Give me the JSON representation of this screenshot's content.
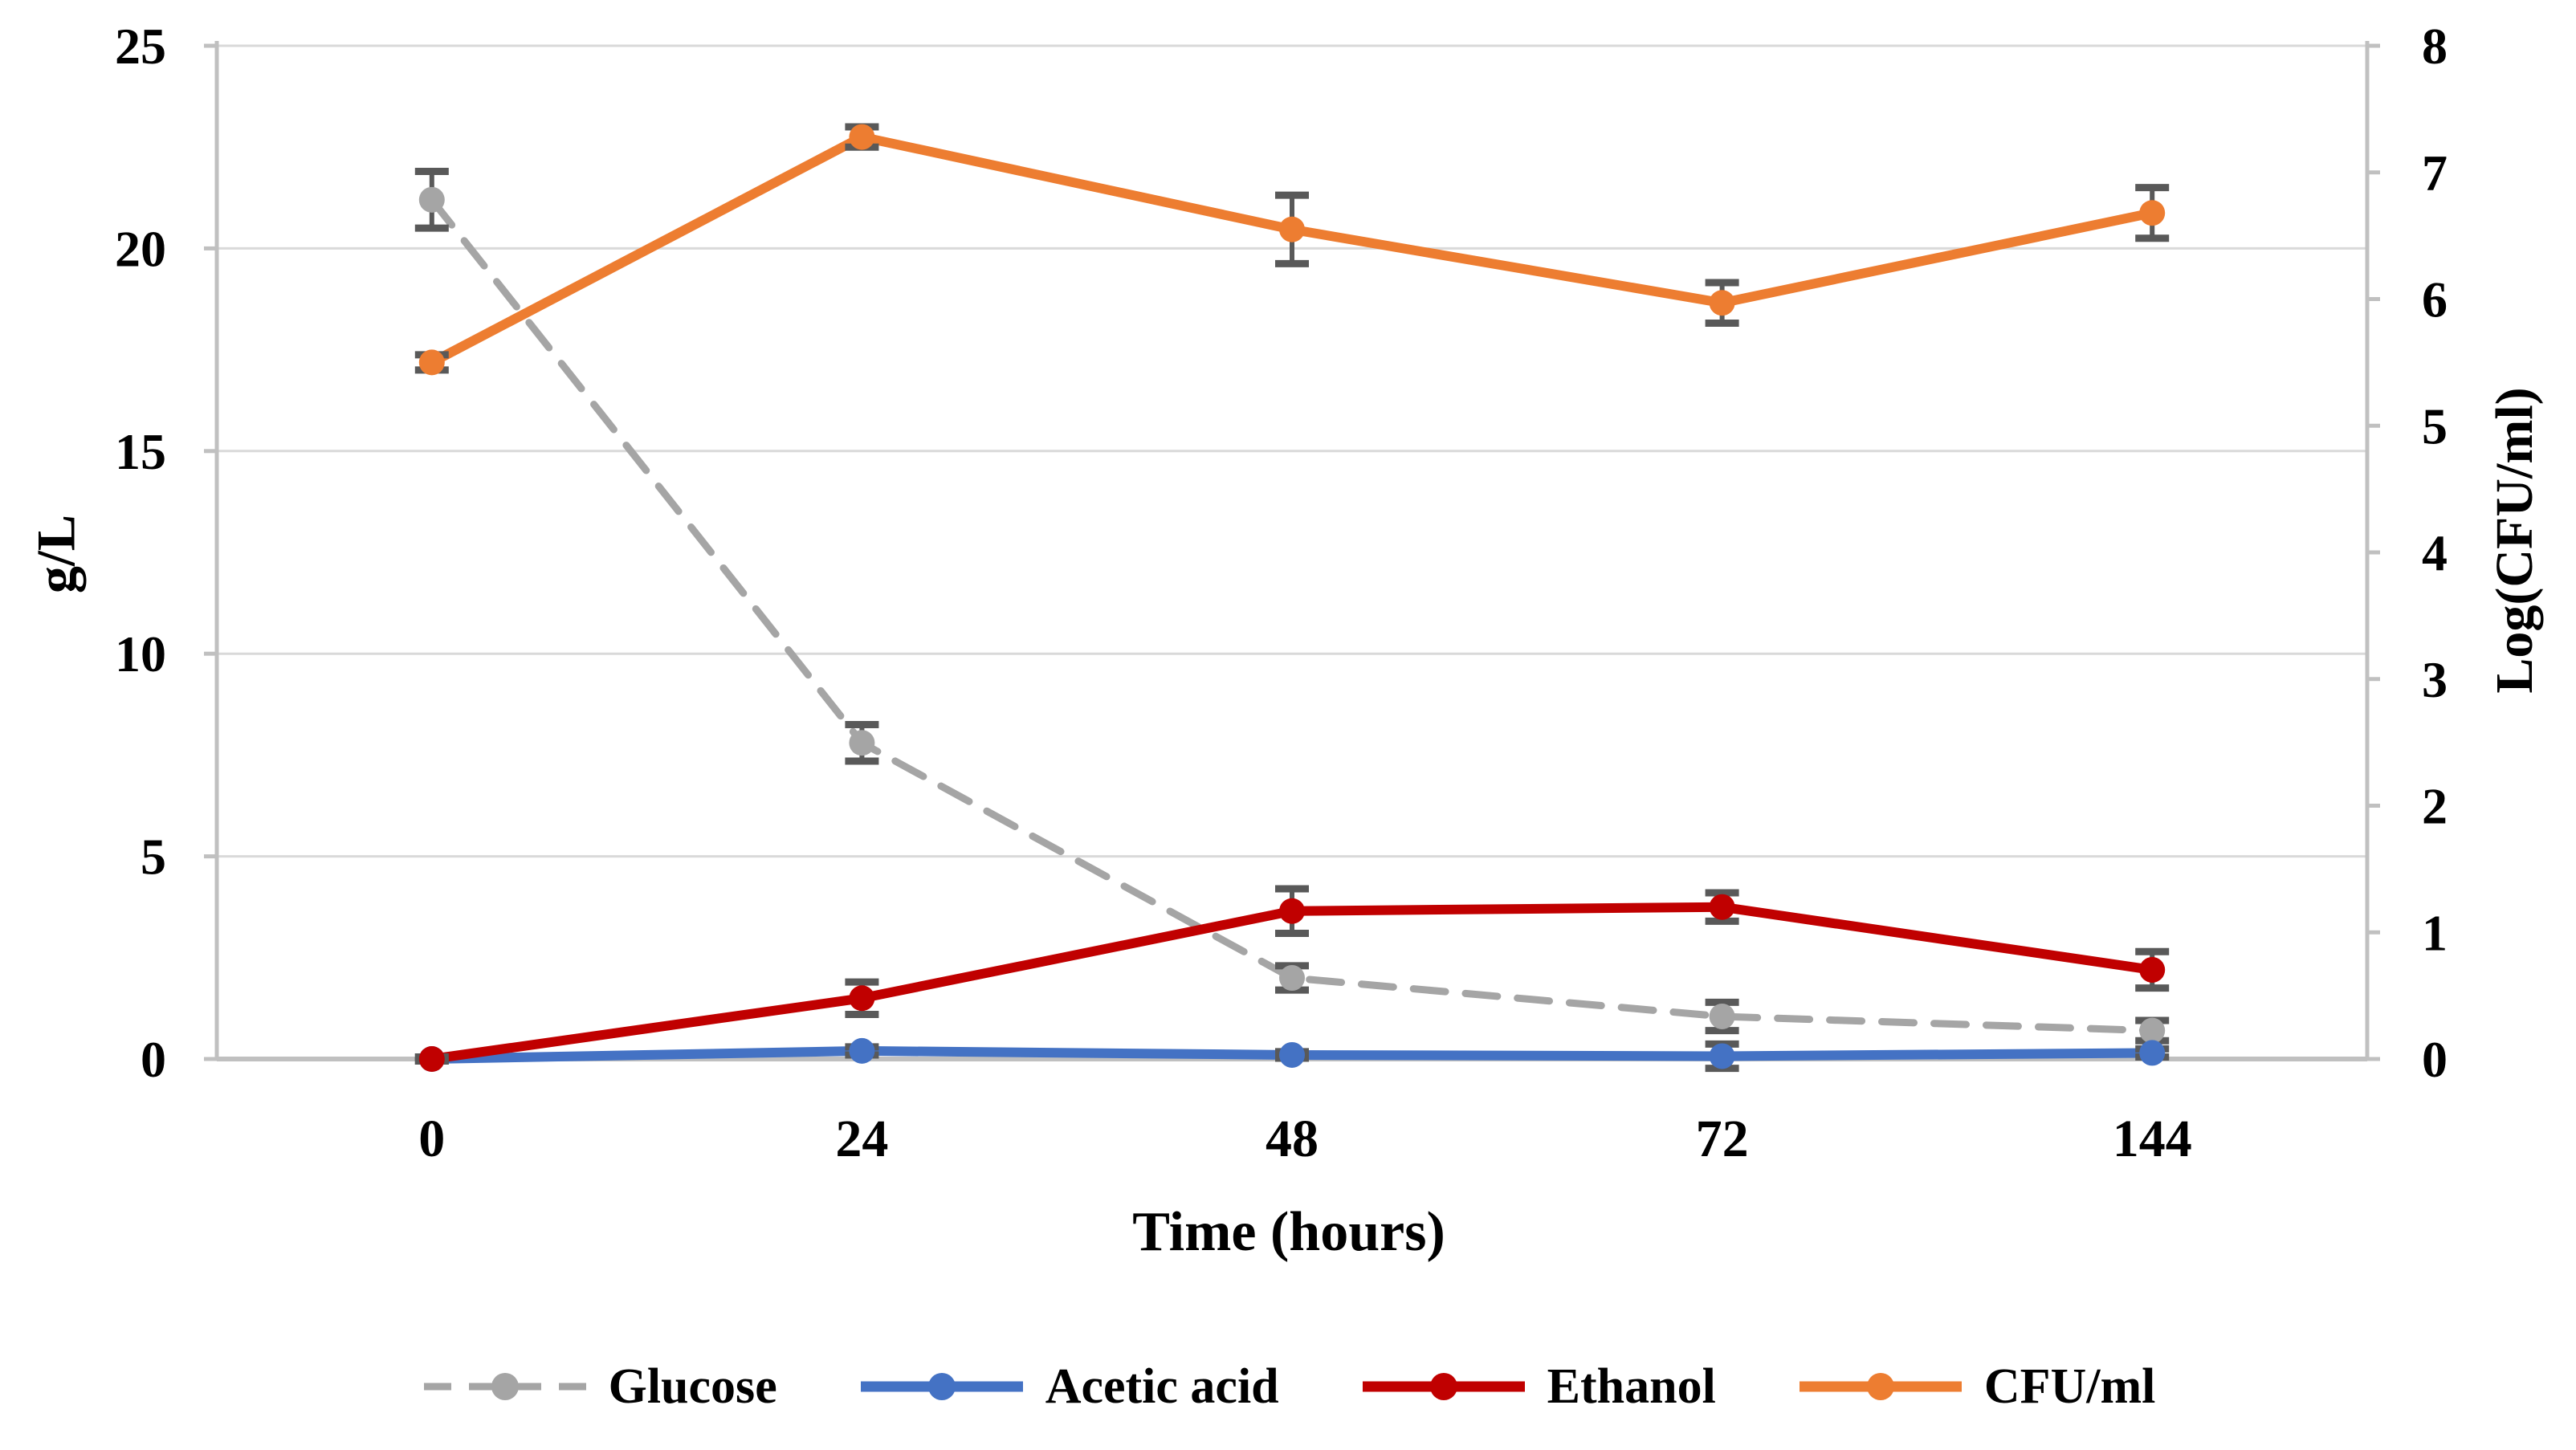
{
  "figure": {
    "background": "#ffffff",
    "description": "Fermentation kinetics line chart with dual y-axes and bottom legend"
  },
  "chart_data": {
    "type": "line",
    "title": "",
    "xlabel": "Time (hours)",
    "ylabel_left": "g/L",
    "ylabel_right": "Log(CFU/ml)",
    "categories": [
      "0",
      "24",
      "48",
      "72",
      "144"
    ],
    "left_axis": {
      "min": 0,
      "max": 25,
      "ticks": [
        25,
        20,
        15,
        10,
        5,
        0
      ]
    },
    "right_axis": {
      "min": 0,
      "max": 8,
      "ticks": [
        8,
        7,
        6,
        5,
        4,
        3,
        2,
        1,
        0
      ]
    },
    "grid": "horizontal-only",
    "legend_position": "bottom",
    "series": [
      {
        "name": "Glucose",
        "axis": "left",
        "color": "#A5A5A5",
        "line_style": "dashed",
        "marker": "circle",
        "values": [
          21.2,
          7.8,
          2.0,
          1.05,
          0.7
        ],
        "errors": [
          0.7,
          0.45,
          0.3,
          0.35,
          0.25
        ]
      },
      {
        "name": "Acetic acid",
        "axis": "left",
        "color": "#4472C4",
        "line_style": "solid",
        "marker": "circle",
        "values": [
          0.0,
          0.2,
          0.1,
          0.07,
          0.15
        ],
        "errors": [
          0.05,
          0.1,
          0.08,
          0.3,
          0.1
        ]
      },
      {
        "name": "Ethanol",
        "axis": "left",
        "color": "#C00000",
        "line_style": "solid",
        "marker": "circle",
        "values": [
          0.0,
          1.5,
          3.65,
          3.75,
          2.2
        ],
        "errors": [
          0.05,
          0.4,
          0.55,
          0.35,
          0.45
        ]
      },
      {
        "name": "CFU/ml",
        "axis": "right",
        "color": "#ED7D31",
        "line_style": "solid",
        "marker": "circle",
        "values": [
          5.5,
          7.28,
          6.55,
          5.97,
          6.68
        ],
        "errors": [
          0.06,
          0.08,
          0.27,
          0.16,
          0.2
        ]
      }
    ],
    "colors": {
      "gridline": "#D9D9D9",
      "axis_line": "#C0C0C0",
      "error_bar": "#595959",
      "text": "#000000"
    }
  }
}
